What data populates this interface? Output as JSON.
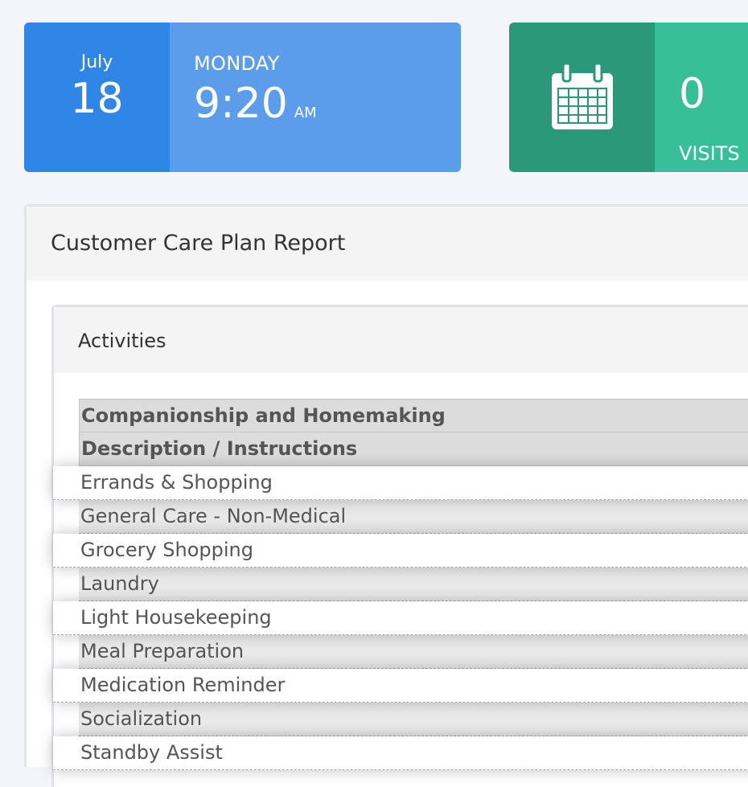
{
  "date_card": {
    "month": "July",
    "day": "18",
    "weekday": "MONDAY",
    "time": "9:20",
    "ampm": "AM"
  },
  "visits_card": {
    "count": "0",
    "label": "VISITS",
    "icon": "calendar-icon"
  },
  "report": {
    "title": "Customer Care Plan Report",
    "section_title": "Activities",
    "category_header": "Companionship and Homemaking",
    "column_header": "Description / Instructions",
    "rows": [
      "Errands & Shopping",
      "General Care - Non-Medical",
      "Grocery Shopping",
      "Laundry",
      "Light Housekeeping",
      "Meal Preparation",
      "Medication Reminder",
      "Socialization",
      "Standby Assist"
    ]
  },
  "colors": {
    "date_left": "#2f86e6",
    "date_right": "#5b9deb",
    "visits_left": "#2a9879",
    "visits_right": "#36bf98"
  }
}
